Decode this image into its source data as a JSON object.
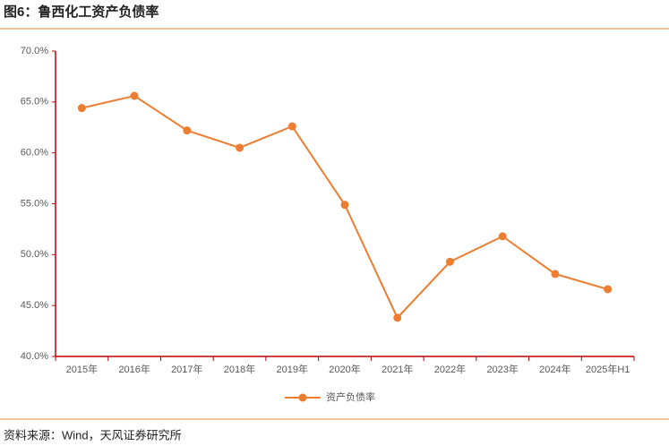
{
  "chart_data": {
    "type": "line",
    "title": "图6：鲁西化工资产负债率",
    "source": "资料来源：Wind，天风证券研究所",
    "categories": [
      "2015年",
      "2016年",
      "2017年",
      "2018年",
      "2019年",
      "2020年",
      "2021年",
      "2022年",
      "2023年",
      "2024年",
      "2025年H1"
    ],
    "series": [
      {
        "name": "资产负债率",
        "color": "#ed7d31",
        "values": [
          64.4,
          65.6,
          62.2,
          60.5,
          62.6,
          54.9,
          43.8,
          49.3,
          51.8,
          48.1,
          46.6
        ]
      }
    ],
    "ylim": [
      40,
      70
    ],
    "yticks": [
      {
        "value": 40,
        "label": "40.0%"
      },
      {
        "value": 45,
        "label": "45.0%"
      },
      {
        "value": 50,
        "label": "50.0%"
      },
      {
        "value": 55,
        "label": "55.0%"
      },
      {
        "value": 60,
        "label": "60.0%"
      },
      {
        "value": 65,
        "label": "65.0%"
      },
      {
        "value": 70,
        "label": "70.0%"
      }
    ],
    "grid": false,
    "legend": "bottom"
  }
}
